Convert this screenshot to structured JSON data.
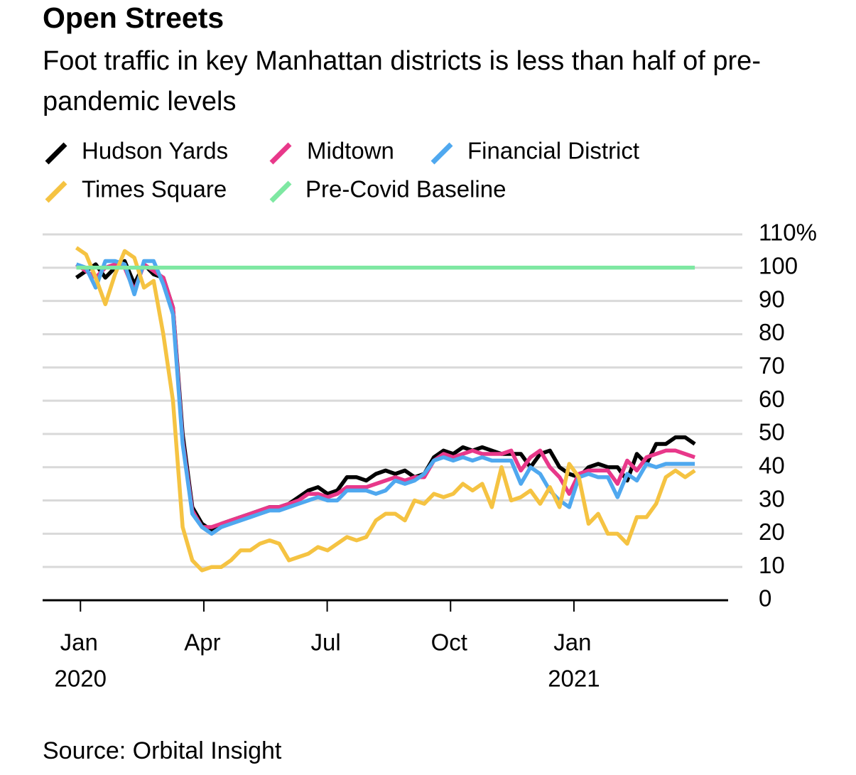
{
  "chart_data": {
    "type": "line",
    "title": "Open Streets",
    "subtitle": "Foot traffic in key Manhattan districts is less than half of pre-pandemic levels",
    "source": "Source: Orbital Insight",
    "x": [
      -0.1,
      0.135,
      0.37,
      0.605,
      0.84,
      1.075,
      1.31,
      1.545,
      1.78,
      2.015,
      2.25,
      2.485,
      2.72,
      2.955,
      3.19,
      3.425,
      3.66,
      3.895,
      4.13,
      4.365,
      4.6,
      4.835,
      5.07,
      5.305,
      5.54,
      5.775,
      6.01,
      6.245,
      6.48,
      6.715,
      6.95,
      7.185,
      7.42,
      7.655,
      7.89,
      8.125,
      8.36,
      8.595,
      8.83,
      9.065,
      9.3,
      9.535,
      9.77,
      10.005,
      10.24,
      10.475,
      10.71,
      10.945,
      11.18,
      11.415,
      11.65,
      11.885,
      12.12,
      12.355,
      12.59,
      12.825,
      13.06,
      13.295,
      13.53,
      13.765,
      14,
      14.235,
      14.47,
      14.705,
      14.94
    ],
    "xlim": [
      -0.92,
      15.75
    ],
    "xticks": [
      {
        "value": 0,
        "label": "Jan"
      },
      {
        "value": 3,
        "label": "Apr"
      },
      {
        "value": 6,
        "label": "Jul"
      },
      {
        "value": 9,
        "label": "Oct"
      },
      {
        "value": 12,
        "label": "Jan"
      }
    ],
    "x_year_labels": [
      {
        "value": 0,
        "label": "2020"
      },
      {
        "value": 12,
        "label": "2021"
      }
    ],
    "ylim": [
      0,
      110
    ],
    "yticks": [
      0,
      10,
      20,
      30,
      40,
      50,
      60,
      70,
      80,
      90,
      100,
      {
        "value": 110,
        "label": "110%"
      }
    ],
    "grid": true,
    "series": [
      {
        "name": "Hudson Yards",
        "color": "#000000",
        "values": [
          97,
          99,
          101,
          97,
          100,
          102,
          95,
          101,
          98,
          97,
          88,
          50,
          28,
          23,
          21,
          23,
          24,
          25,
          26,
          27,
          28,
          28,
          29,
          31,
          33,
          34,
          32,
          33,
          37,
          37,
          36,
          38,
          39,
          38,
          39,
          37,
          38,
          43,
          45,
          44,
          46,
          45,
          46,
          45,
          44,
          44,
          44,
          40,
          44,
          45,
          40,
          38,
          37,
          40,
          41,
          40,
          40,
          36,
          44,
          41,
          47,
          47,
          49,
          49,
          47
        ]
      },
      {
        "name": "Midtown",
        "color": "#e8388a",
        "values": [
          101,
          99,
          97,
          100,
          101,
          100,
          93,
          101,
          99,
          97,
          88,
          48,
          27,
          22,
          22,
          23,
          24,
          25,
          26,
          27,
          28,
          28,
          29,
          30,
          32,
          32,
          31,
          32,
          34,
          34,
          34,
          35,
          36,
          37,
          36,
          37,
          37,
          42,
          44,
          43,
          44,
          45,
          44,
          44,
          44,
          45,
          39,
          43,
          45,
          40,
          37,
          32,
          38,
          39,
          39,
          39,
          35,
          42,
          39,
          43,
          44,
          45,
          45,
          44,
          43
        ]
      },
      {
        "name": "Financial District",
        "color": "#4fa8ef",
        "values": [
          101,
          100,
          94,
          102,
          102,
          101,
          92,
          102,
          102,
          95,
          86,
          47,
          26,
          22,
          20,
          22,
          23,
          24,
          25,
          26,
          27,
          27,
          28,
          29,
          30,
          31,
          30,
          30,
          33,
          33,
          33,
          32,
          33,
          36,
          35,
          36,
          38,
          42,
          43,
          42,
          43,
          42,
          43,
          42,
          42,
          42,
          35,
          40,
          38,
          33,
          30,
          28,
          37,
          38,
          37,
          37,
          31,
          38,
          36,
          41,
          40,
          41,
          41,
          41,
          41
        ]
      },
      {
        "name": "Times Square",
        "color": "#f5c342",
        "values": [
          106,
          104,
          97,
          89,
          98,
          105,
          103,
          94,
          96,
          80,
          60,
          22,
          12,
          9,
          10,
          10,
          12,
          15,
          15,
          17,
          18,
          17,
          12,
          13,
          14,
          16,
          15,
          17,
          19,
          18,
          19,
          24,
          26,
          26,
          24,
          30,
          29,
          32,
          31,
          32,
          35,
          33,
          35,
          28,
          40,
          30,
          31,
          33,
          29,
          34,
          28,
          41,
          37,
          23,
          26,
          20,
          20,
          17,
          25,
          25,
          29,
          37,
          39,
          37,
          39
        ]
      },
      {
        "name": "Pre-Covid Baseline",
        "color": "#7ee8a2",
        "values": [
          100,
          100,
          100,
          100,
          100,
          100,
          100,
          100,
          100,
          100,
          100,
          100,
          100,
          100,
          100,
          100,
          100,
          100,
          100,
          100,
          100,
          100,
          100,
          100,
          100,
          100,
          100,
          100,
          100,
          100,
          100,
          100,
          100,
          100,
          100,
          100,
          100,
          100,
          100,
          100,
          100,
          100,
          100,
          100,
          100,
          100,
          100,
          100,
          100,
          100,
          100,
          100,
          100,
          100,
          100,
          100,
          100,
          100,
          100,
          100,
          100,
          100,
          100,
          100,
          100
        ]
      }
    ]
  }
}
